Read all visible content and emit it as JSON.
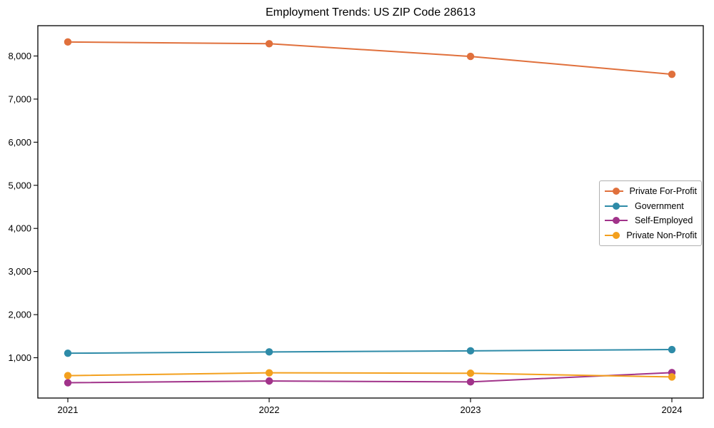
{
  "figure": {
    "title": "Employment Trends: US ZIP Code 28613"
  },
  "chart_data": {
    "type": "line",
    "title": "Employment Trends: US ZIP Code 28613",
    "x": [
      2021,
      2022,
      2023,
      2024
    ],
    "xtick_labels": [
      "2021",
      "2022",
      "2023",
      "2024"
    ],
    "xlabel": "",
    "ylabel": "",
    "ylim": [
      0,
      8700
    ],
    "yticks": [
      1000,
      2000,
      3000,
      4000,
      5000,
      6000,
      7000,
      8000
    ],
    "ytick_labels": [
      "1,000",
      "2,000",
      "3,000",
      "4,000",
      "5,000",
      "6,000",
      "7,000",
      "8,000"
    ],
    "grid": false,
    "legend_position": "center right",
    "series": [
      {
        "name": "Private For-Profit",
        "color": "#E0703C",
        "values": [
          8325,
          8285,
          7990,
          7575
        ]
      },
      {
        "name": "Government",
        "color": "#2E8BA8",
        "values": [
          1105,
          1135,
          1160,
          1190
        ]
      },
      {
        "name": "Self-Employed",
        "color": "#A1338A",
        "values": [
          420,
          460,
          440,
          655
        ]
      },
      {
        "name": "Private Non-Profit",
        "color": "#F3A01E",
        "values": [
          585,
          650,
          640,
          555
        ]
      }
    ]
  }
}
